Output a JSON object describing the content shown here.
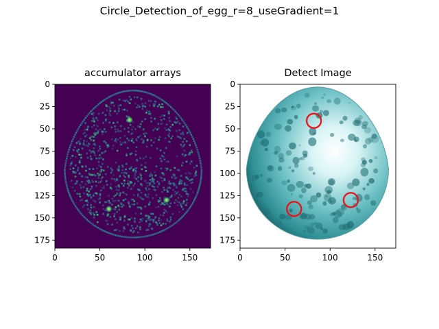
{
  "figure": {
    "suptitle": "Circle_Detection_of_egg_r=8_useGradient=1"
  },
  "chart_data": [
    {
      "type": "heatmap",
      "title": "accumulator arrays",
      "colormap": "viridis",
      "xlim": [
        0,
        173
      ],
      "ylim": [
        184,
        0
      ],
      "xticks": [
        0,
        50,
        100,
        150
      ],
      "yticks": [
        0,
        25,
        50,
        75,
        100,
        125,
        150,
        175
      ],
      "peaks": [
        {
          "x": 83,
          "y": 40
        },
        {
          "x": 60,
          "y": 140
        },
        {
          "x": 124,
          "y": 130
        }
      ]
    },
    {
      "type": "image",
      "title": "Detect Image",
      "xlim": [
        0,
        173
      ],
      "ylim": [
        184,
        0
      ],
      "xticks": [
        0,
        50,
        100,
        150
      ],
      "yticks": [
        0,
        25,
        50,
        75,
        100,
        125,
        150,
        175
      ],
      "circle_radius": 8,
      "circle_color": "#e8151b",
      "detected_circles": [
        {
          "x": 82,
          "y": 41
        },
        {
          "x": 60,
          "y": 140
        },
        {
          "x": 123,
          "y": 130
        }
      ]
    }
  ]
}
